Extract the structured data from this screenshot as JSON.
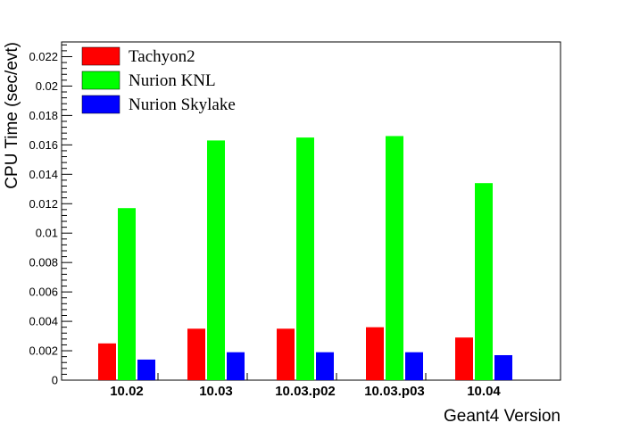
{
  "chart_data": {
    "type": "bar",
    "xlabel": "Geant4 Version",
    "ylabel": "CPU Time (sec/evt)",
    "categories": [
      "10.02",
      "10.03",
      "10.03.p02",
      "10.03.p03",
      "10.04"
    ],
    "series": [
      {
        "name": "Tachyon2",
        "color": "#ff0000",
        "values": [
          0.0025,
          0.0035,
          0.0035,
          0.0036,
          0.0029
        ]
      },
      {
        "name": "Nurion KNL",
        "color": "#00ff00",
        "values": [
          0.0117,
          0.0163,
          0.0165,
          0.0166,
          0.0134
        ]
      },
      {
        "name": "Nurion Skylake",
        "color": "#0000ff",
        "values": [
          0.0014,
          0.0019,
          0.0019,
          0.0019,
          0.0017
        ]
      }
    ],
    "ylim": [
      0,
      0.023
    ],
    "yticks": [
      "0",
      "0.002",
      "0.004",
      "0.006",
      "0.008",
      "0.01",
      "0.012",
      "0.014",
      "0.016",
      "0.018",
      "0.02",
      "0.022"
    ],
    "legend_position": "top-left",
    "grid": false
  }
}
